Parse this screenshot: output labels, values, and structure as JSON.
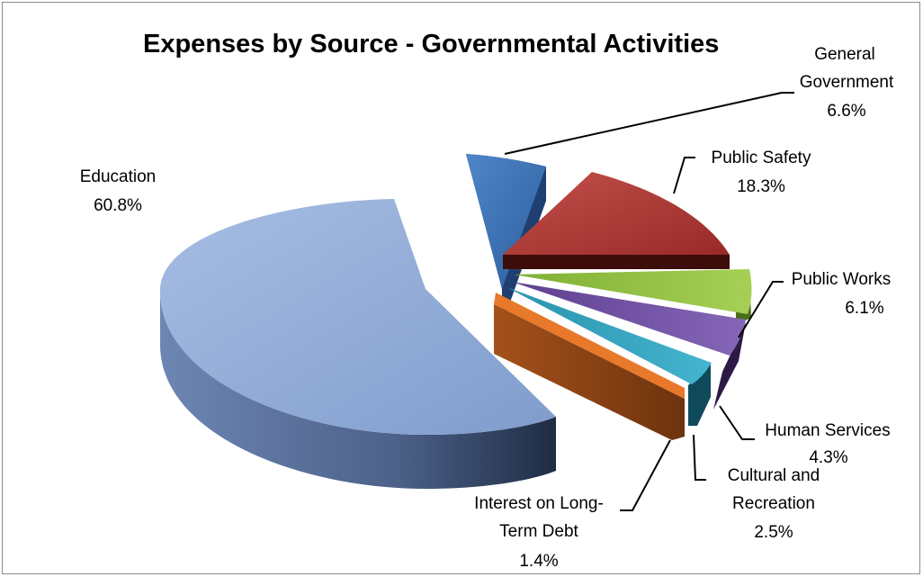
{
  "chart_data": {
    "type": "pie",
    "title": "Expenses by Source - Governmental Activities",
    "slices": [
      {
        "name": "Education",
        "value": 60.8,
        "label_pct": "60.8%",
        "label_lines": [
          "Education",
          "60.8%"
        ],
        "color": "#8ea9d6"
      },
      {
        "name": "General Government",
        "value": 6.6,
        "label_pct": "6.6%",
        "label_lines": [
          "General",
          "Government",
          "6.6%"
        ],
        "color": "#3f72b4"
      },
      {
        "name": "Public Safety",
        "value": 18.3,
        "label_pct": "18.3%",
        "label_lines": [
          "Public Safety",
          "18.3%"
        ],
        "color": "#b13632"
      },
      {
        "name": "Public Works",
        "value": 6.1,
        "label_pct": "6.1%",
        "label_lines": [
          "Public Works",
          "6.1%"
        ],
        "color": "#8fbf3a"
      },
      {
        "name": "Human Services",
        "value": 4.3,
        "label_pct": "4.3%",
        "label_lines": [
          "Human Services",
          "4.3%"
        ],
        "color": "#7250a3"
      },
      {
        "name": "Cultural and Recreation",
        "value": 2.5,
        "label_pct": "2.5%",
        "label_lines": [
          "Cultural and",
          "Recreation",
          "2.5%"
        ],
        "color": "#2fa3bf"
      },
      {
        "name": "Interest on Long-Term Debt",
        "value": 1.4,
        "label_pct": "1.4%",
        "label_lines": [
          "Interest on Long-",
          "Term Debt",
          "1.4%"
        ],
        "color": "#e8792a"
      }
    ],
    "style": "3d-exploded"
  }
}
